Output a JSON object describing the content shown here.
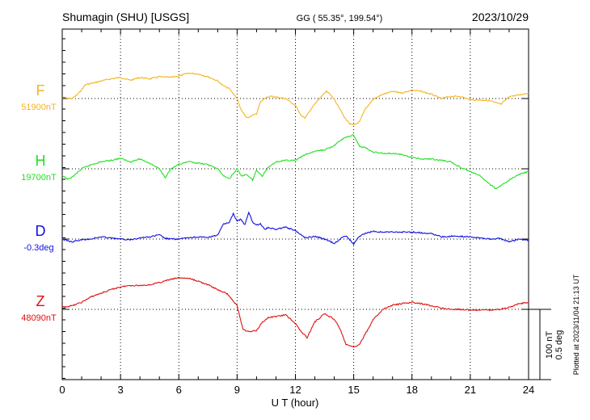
{
  "header": {
    "station": "Shumagin (SHU)  [USGS]",
    "coords": "GG ( 55.35°, 199.54°)",
    "date": "2023/10/29"
  },
  "footer_note": "Plotted at 2023/11/04 21:13 UT",
  "scale_bar": {
    "nt_label": "100 nT",
    "deg_label": "0.5 deg"
  },
  "colors": {
    "F": "#f5b41e",
    "H": "#22e022",
    "D": "#1010e0",
    "Z": "#e01010",
    "axis": "#000000",
    "grid": "#000000"
  },
  "chart_data": {
    "type": "line",
    "xlabel": "U T (hour)",
    "xlim": [
      0,
      24
    ],
    "xticks": [
      0,
      3,
      6,
      9,
      12,
      15,
      18,
      21,
      24
    ],
    "xtick_labels": [
      "0",
      "3",
      "6",
      "9",
      "12",
      "15",
      "18",
      "21",
      "24"
    ],
    "grid": true,
    "series": [
      {
        "name": "F",
        "baseline_label": "51900nT",
        "baseline": 51900,
        "unit": "nT",
        "x": [
          0,
          0.5,
          0.8,
          1.2,
          1.6,
          2,
          2.5,
          3,
          3.5,
          4,
          4.5,
          5,
          5.5,
          6,
          6.5,
          7,
          7.5,
          8,
          8.3,
          8.6,
          9,
          9.2,
          9.5,
          9.8,
          10,
          10.2,
          10.5,
          10.8,
          11,
          11.5,
          12,
          12.3,
          12.5,
          12.8,
          13,
          13.3,
          13.6,
          13.9,
          14.2,
          14.5,
          14.8,
          15,
          15.3,
          15.6,
          16,
          16.5,
          17,
          17.5,
          18,
          18.5,
          19,
          19.5,
          20,
          20.5,
          21,
          21.5,
          22,
          22.3,
          22.6,
          23,
          23.5,
          24
        ],
        "y": [
          51901,
          51900,
          51906,
          51920,
          51922,
          51925,
          51928,
          51930,
          51926,
          51930,
          51928,
          51931,
          51930,
          51932,
          51936,
          51935,
          51931,
          51925,
          51918,
          51914,
          51900,
          51884,
          51872,
          51876,
          51878,
          51895,
          51902,
          51903,
          51902,
          51900,
          51890,
          51876,
          51872,
          51885,
          51892,
          51902,
          51910,
          51903,
          51890,
          51874,
          51864,
          51862,
          51867,
          51885,
          51899,
          51906,
          51910,
          51908,
          51912,
          51910,
          51906,
          51900,
          51903,
          51903,
          51898,
          51898,
          51897,
          51894,
          51892,
          51903,
          51905,
          51908
        ]
      },
      {
        "name": "H",
        "baseline_label": "19700nT",
        "baseline": 19700,
        "unit": "nT",
        "x": [
          0,
          0.3,
          0.6,
          1,
          1.5,
          2,
          2.5,
          3,
          3.5,
          4,
          4.5,
          5,
          5.3,
          5.6,
          6,
          6.5,
          7,
          7.5,
          8,
          8.3,
          8.6,
          9,
          9.2,
          9.5,
          9.8,
          10,
          10.3,
          10.6,
          11,
          11.5,
          12,
          12.5,
          13,
          13.5,
          14,
          14.3,
          14.6,
          15,
          15.3,
          15.6,
          16,
          16.5,
          17,
          17.5,
          18,
          18.5,
          19,
          19.5,
          20,
          20.5,
          21,
          21.5,
          22,
          22.3,
          22.6,
          23,
          23.5,
          24
        ],
        "y": [
          19690,
          19685,
          19690,
          19700,
          19706,
          19710,
          19712,
          19715,
          19710,
          19714,
          19708,
          19700,
          19688,
          19700,
          19706,
          19710,
          19708,
          19706,
          19700,
          19690,
          19686,
          19700,
          19690,
          19692,
          19684,
          19698,
          19690,
          19702,
          19710,
          19712,
          19712,
          19720,
          19725,
          19727,
          19733,
          19740,
          19745,
          19748,
          19732,
          19730,
          19724,
          19722,
          19722,
          19720,
          19716,
          19714,
          19714,
          19712,
          19710,
          19702,
          19696,
          19690,
          19678,
          19672,
          19676,
          19684,
          19692,
          19696
        ]
      },
      {
        "name": "D",
        "baseline_label": "-0.3deg",
        "baseline": -0.3,
        "unit": "deg",
        "x": [
          0,
          0.5,
          1,
          1.5,
          2,
          2.5,
          3,
          3.5,
          4,
          4.5,
          5,
          5.3,
          5.6,
          6,
          6.5,
          7,
          7.5,
          8,
          8.3,
          8.6,
          8.8,
          9,
          9.2,
          9.4,
          9.6,
          9.8,
          10,
          10.2,
          10.4,
          10.6,
          11,
          11.5,
          12,
          12.5,
          13,
          13.5,
          14,
          14.3,
          14.6,
          15,
          15.3,
          15.6,
          16,
          16.5,
          17,
          17.5,
          18,
          18.5,
          19,
          19.5,
          20,
          20.5,
          21,
          21.5,
          22,
          22.5,
          23,
          23.5,
          24
        ],
        "y": [
          -0.3,
          -0.32,
          -0.305,
          -0.298,
          -0.285,
          -0.292,
          -0.3,
          -0.305,
          -0.29,
          -0.285,
          -0.27,
          -0.295,
          -0.3,
          -0.3,
          -0.29,
          -0.285,
          -0.29,
          -0.27,
          -0.195,
          -0.18,
          -0.12,
          -0.17,
          -0.16,
          -0.2,
          -0.11,
          -0.18,
          -0.2,
          -0.19,
          -0.23,
          -0.22,
          -0.23,
          -0.215,
          -0.24,
          -0.29,
          -0.28,
          -0.3,
          -0.33,
          -0.3,
          -0.275,
          -0.335,
          -0.28,
          -0.26,
          -0.245,
          -0.25,
          -0.25,
          -0.25,
          -0.25,
          -0.255,
          -0.26,
          -0.285,
          -0.28,
          -0.28,
          -0.285,
          -0.29,
          -0.3,
          -0.295,
          -0.32,
          -0.3,
          -0.31
        ]
      },
      {
        "name": "Z",
        "baseline_label": "48090nT",
        "baseline": 48090,
        "unit": "nT",
        "x": [
          0,
          0.5,
          1,
          1.5,
          2,
          2.5,
          3,
          3.5,
          4,
          4.5,
          5,
          5.5,
          6,
          6.5,
          7,
          7.5,
          8,
          8.5,
          9,
          9.3,
          9.6,
          10,
          10.3,
          10.6,
          11,
          11.5,
          12,
          12.3,
          12.6,
          13,
          13.5,
          14,
          14.3,
          14.6,
          15,
          15.3,
          15.6,
          16,
          16.5,
          17,
          17.5,
          18,
          18.5,
          19,
          19.5,
          20,
          20.5,
          21,
          21.5,
          22,
          22.5,
          23,
          23.5,
          24
        ],
        "y": [
          48093,
          48095,
          48100,
          48108,
          48113,
          48118,
          48122,
          48124,
          48124,
          48125,
          48128,
          48132,
          48135,
          48134,
          48130,
          48125,
          48118,
          48112,
          48095,
          48062,
          48058,
          48060,
          48072,
          48078,
          48080,
          48082,
          48070,
          48058,
          48050,
          48072,
          48084,
          48076,
          48062,
          48040,
          48036,
          48040,
          48055,
          48075,
          48090,
          48096,
          48098,
          48100,
          48098,
          48095,
          48092,
          48090,
          48090,
          48089,
          48089,
          48089,
          48090,
          48093,
          48098,
          48100
        ]
      }
    ]
  }
}
